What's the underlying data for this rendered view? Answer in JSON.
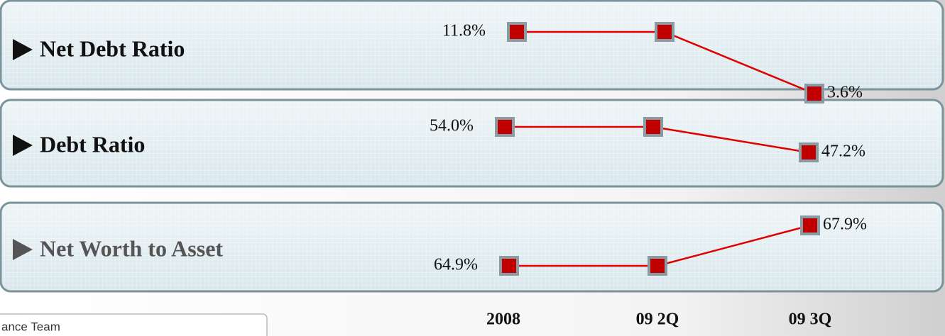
{
  "chart_data": {
    "type": "line",
    "categories": [
      "2008",
      "09 2Q",
      "09 3Q"
    ],
    "series": [
      {
        "name": "Net Debt Ratio",
        "color": "#e00000",
        "values": [
          11.8,
          11.8,
          3.6
        ],
        "value_labels": [
          "11.8%",
          null,
          "3.6%"
        ]
      },
      {
        "name": "Debt Ratio",
        "color": "#e00000",
        "values": [
          54.0,
          54.0,
          47.2
        ],
        "value_labels": [
          "54.0%",
          null,
          "47.2%"
        ]
      },
      {
        "name": "Net Worth to Asset",
        "color": "#e00000",
        "values": [
          64.9,
          64.9,
          67.9
        ],
        "value_labels": [
          "64.9%",
          null,
          "67.9%"
        ]
      }
    ]
  },
  "footer": "ance Team"
}
